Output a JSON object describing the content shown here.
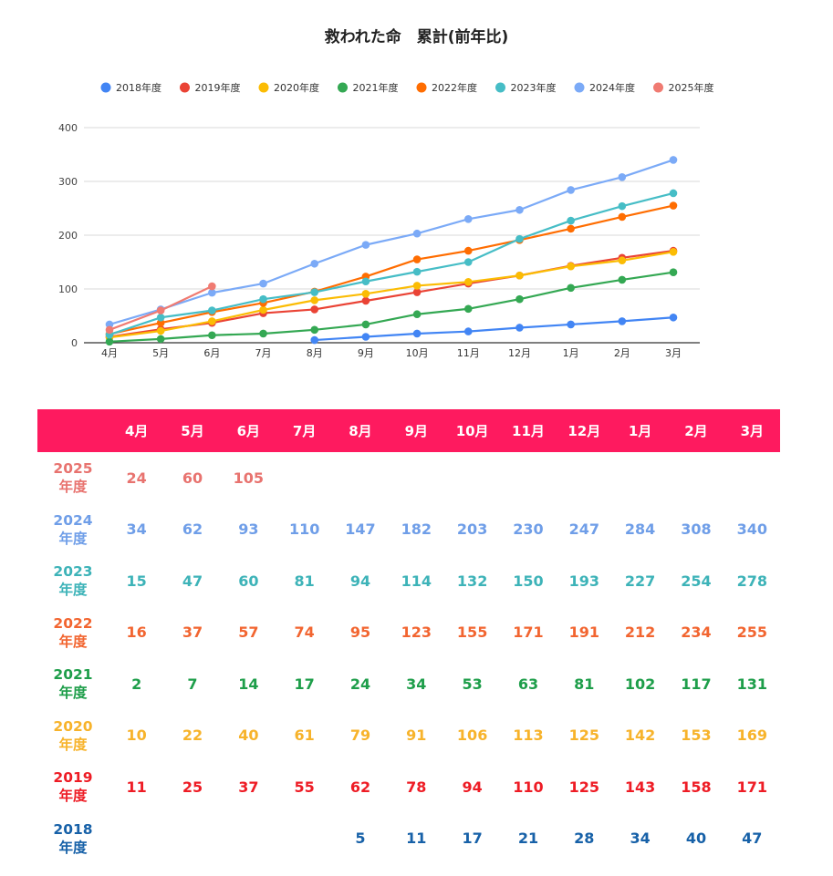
{
  "chart_data": {
    "type": "line",
    "title": "救われた命　累計(前年比)",
    "categories": [
      "4月",
      "5月",
      "6月",
      "7月",
      "8月",
      "9月",
      "10月",
      "11月",
      "12月",
      "1月",
      "2月",
      "3月"
    ],
    "ylim": [
      0,
      400
    ],
    "yticks": [
      "0",
      "100",
      "200",
      "300",
      "400"
    ],
    "grid": true,
    "legend_position": "top",
    "series": [
      {
        "name": "2018年度",
        "color": "#4285f4",
        "values": [
          null,
          null,
          null,
          null,
          5,
          11,
          17,
          21,
          28,
          34,
          40,
          47
        ]
      },
      {
        "name": "2019年度",
        "color": "#ea4335",
        "values": [
          11,
          25,
          37,
          55,
          62,
          78,
          94,
          110,
          125,
          143,
          158,
          171
        ]
      },
      {
        "name": "2020年度",
        "color": "#fbbc04",
        "values": [
          10,
          22,
          40,
          61,
          79,
          91,
          106,
          113,
          125,
          142,
          153,
          169
        ]
      },
      {
        "name": "2021年度",
        "color": "#34a853",
        "values": [
          2,
          7,
          14,
          17,
          24,
          34,
          53,
          63,
          81,
          102,
          117,
          131
        ]
      },
      {
        "name": "2022年度",
        "color": "#ff6d01",
        "values": [
          16,
          37,
          57,
          74,
          95,
          123,
          155,
          171,
          191,
          212,
          234,
          255
        ]
      },
      {
        "name": "2023年度",
        "color": "#46bdc6",
        "values": [
          15,
          47,
          60,
          81,
          94,
          114,
          132,
          150,
          193,
          227,
          254,
          278
        ]
      },
      {
        "name": "2024年度",
        "color": "#7baaf7",
        "values": [
          34,
          62,
          93,
          110,
          147,
          182,
          203,
          230,
          247,
          284,
          308,
          340
        ]
      },
      {
        "name": "2025年度",
        "color": "#f07b72",
        "values": [
          24,
          60,
          105,
          null,
          null,
          null,
          null,
          null,
          null,
          null,
          null,
          null
        ]
      }
    ]
  },
  "table": {
    "header": [
      "4月",
      "5月",
      "6月",
      "7月",
      "8月",
      "9月",
      "10月",
      "11月",
      "12月",
      "1月",
      "2月",
      "3月"
    ],
    "rows": [
      {
        "year": "2025",
        "suffix": "年度",
        "color": "#e8736f",
        "values": [
          "24",
          "60",
          "105",
          "",
          "",
          "",
          "",
          "",
          "",
          "",
          "",
          ""
        ]
      },
      {
        "year": "2024",
        "suffix": "年度",
        "color": "#6f9ee8",
        "values": [
          "34",
          "62",
          "93",
          "110",
          "147",
          "182",
          "203",
          "230",
          "247",
          "284",
          "308",
          "340"
        ]
      },
      {
        "year": "2023",
        "suffix": "年度",
        "color": "#3db3b8",
        "values": [
          "15",
          "47",
          "60",
          "81",
          "94",
          "114",
          "132",
          "150",
          "193",
          "227",
          "254",
          "278"
        ]
      },
      {
        "year": "2022",
        "suffix": "年度",
        "color": "#f26530",
        "values": [
          "16",
          "37",
          "57",
          "74",
          "95",
          "123",
          "155",
          "171",
          "191",
          "212",
          "234",
          "255"
        ]
      },
      {
        "year": "2021",
        "suffix": "年度",
        "color": "#1e9e4a",
        "values": [
          "2",
          "7",
          "14",
          "17",
          "24",
          "34",
          "53",
          "63",
          "81",
          "102",
          "117",
          "131"
        ]
      },
      {
        "year": "2020",
        "suffix": "年度",
        "color": "#f7b32b",
        "values": [
          "10",
          "22",
          "40",
          "61",
          "79",
          "91",
          "106",
          "113",
          "125",
          "142",
          "153",
          "169"
        ]
      },
      {
        "year": "2019",
        "suffix": "年度",
        "color": "#ee1c25",
        "values": [
          "11",
          "25",
          "37",
          "55",
          "62",
          "78",
          "94",
          "110",
          "125",
          "143",
          "158",
          "171"
        ]
      },
      {
        "year": "2018",
        "suffix": "年度",
        "color": "#1761a8",
        "values": [
          "",
          "",
          "",
          "",
          "5",
          "11",
          "17",
          "21",
          "28",
          "34",
          "40",
          "47"
        ]
      }
    ]
  }
}
